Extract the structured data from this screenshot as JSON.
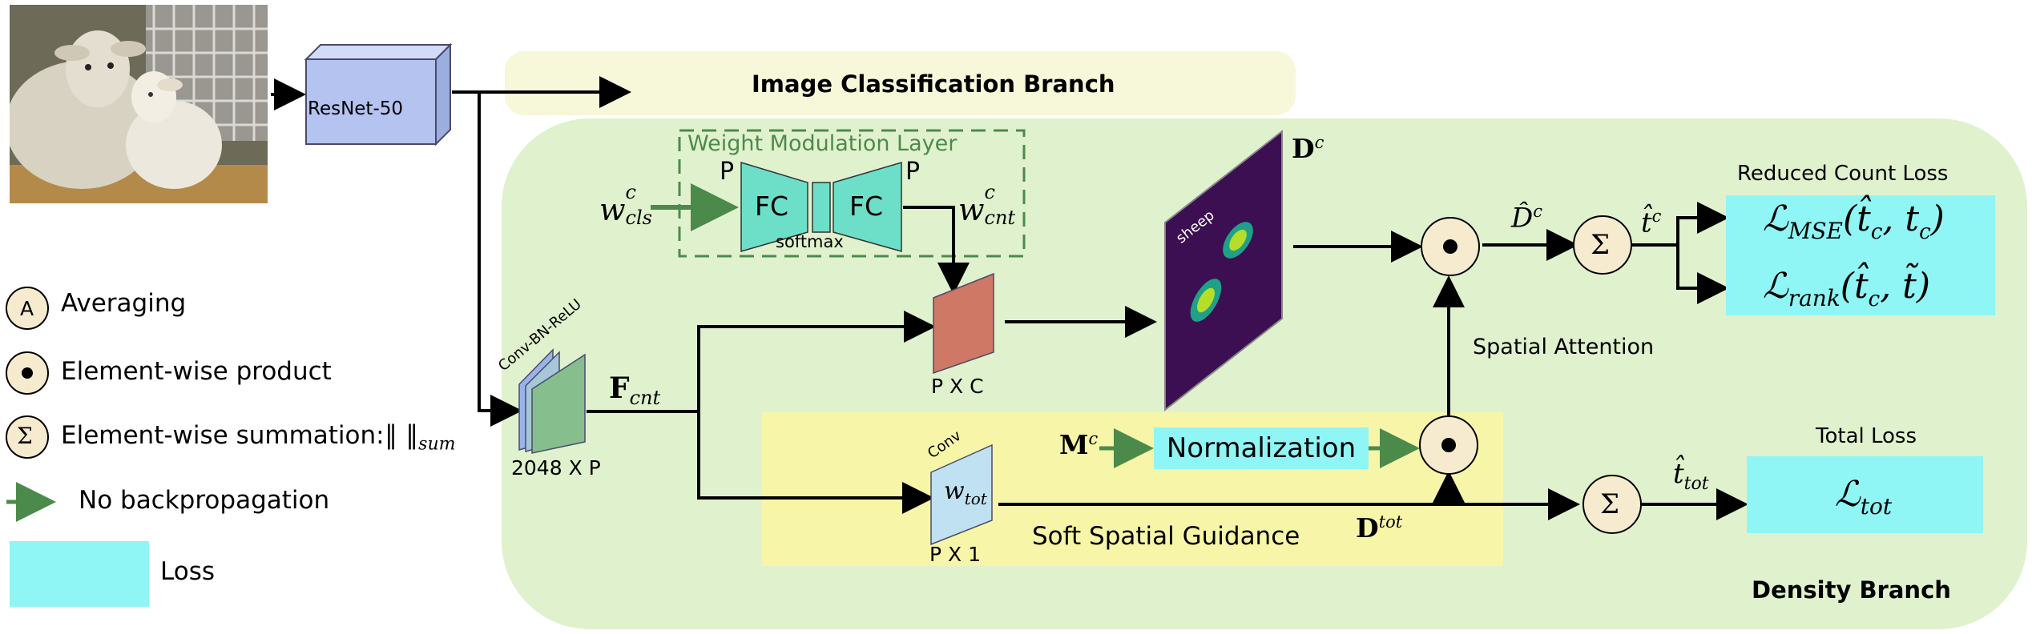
{
  "branches": {
    "classification": "Image Classification Branch",
    "density": "Density Branch"
  },
  "backbone": {
    "label": "ResNet-50"
  },
  "legend": {
    "averaging": {
      "symbol": "A",
      "label": "Averaging"
    },
    "product": {
      "label": "Element-wise product"
    },
    "summation": {
      "symbol": "Σ",
      "label": "Element-wise summation:",
      "norm": "‖  ‖",
      "norm_sub": "sum"
    },
    "no_backprop": {
      "label": "No backpropagation"
    },
    "loss": {
      "label": "Loss"
    }
  },
  "wml": {
    "title": "Weight Modulation Layer",
    "fc1": "FC",
    "fc2": "FC",
    "p_left": "P",
    "p_right": "P",
    "softmax": "softmax",
    "w_cls_base": "w",
    "w_cls_sup": "c",
    "w_cls_sub": "cls",
    "w_cnt_base": "w",
    "w_cnt_sup": "c",
    "w_cnt_sub": "cnt"
  },
  "conv_bn": {
    "label": "Conv-BN-ReLU",
    "dims": "2048 X P"
  },
  "fcnt": {
    "base": "F",
    "sub": "cnt"
  },
  "pxc": {
    "dims": "P X C"
  },
  "dc": {
    "base": "D",
    "sup": "c",
    "map_label": "sheep"
  },
  "dhat": {
    "base": "D̂",
    "sup": "c"
  },
  "that": {
    "base": "t̂",
    "sup": "c"
  },
  "spatial_attention": "Spatial Attention",
  "soft_guidance": {
    "title": "Soft Spatial Guidance",
    "conv": "Conv",
    "w_tot_base": "w",
    "w_tot_sub": "tot",
    "dims": "P X 1",
    "mc_base": "M",
    "mc_sup": "c",
    "normalization": "Normalization",
    "dtot_base": "D",
    "dtot_sup": "tot"
  },
  "losses": {
    "reduced_title": "Reduced Count Loss",
    "mse": {
      "base": "ℒ",
      "sub": "MSE",
      "args": "(t̂",
      "args2": "c",
      "args3": ", t",
      "args4": "c",
      "close": ")"
    },
    "rank": {
      "base": "ℒ",
      "sub": "rank",
      "args": "(t̂",
      "args2": "c",
      "args3": ", t̃)"
    },
    "total_title": "Total Loss",
    "tot": {
      "base": "ℒ",
      "sub": "tot"
    },
    "ttot": {
      "base": "t̂",
      "sub": "tot"
    }
  },
  "symbols": {
    "sum": "Σ"
  },
  "colors": {
    "classification_bg": "#f7f7d9",
    "density_bg": "#e0f1cd",
    "guidance_bg": "#f7f6a8",
    "loss_bg": "#8ff5f5",
    "fc_fill": "#6ddfc8",
    "arrow_green": "#4c8a4c",
    "circle_fill": "#f7ebcf",
    "resnet_fill": "#b4c3ef",
    "pxc_fill": "#cf7866",
    "wtot_fill": "#bfe1f2",
    "conv_fill": "#86be8e",
    "dc_bg": "#3b0f52"
  }
}
